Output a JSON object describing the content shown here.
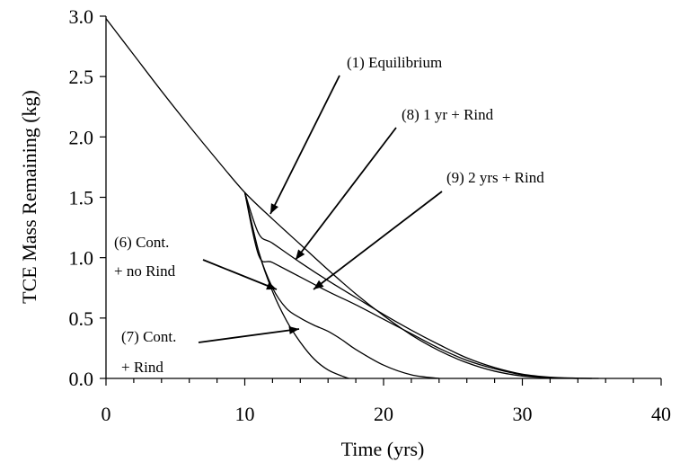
{
  "chart_data": {
    "type": "line",
    "title": "",
    "xlabel": "Time (yrs)",
    "ylabel": "TCE Mass Remaining (kg)",
    "xlim": [
      0,
      40
    ],
    "ylim": [
      0,
      3.0
    ],
    "x_ticks": [
      0,
      10,
      20,
      30,
      40
    ],
    "x_tick_labels": [
      "0",
      "10",
      "20",
      "30",
      "40"
    ],
    "y_ticks": [
      0,
      0.5,
      1.0,
      1.5,
      2.0,
      2.5,
      3.0
    ],
    "y_tick_labels": [
      "0.0",
      "0.5",
      "1.0",
      "1.5",
      "2.0",
      "2.5",
      "3.0"
    ],
    "grid": false,
    "legend": "none",
    "series": [
      {
        "x": [
          0,
          2,
          4,
          6,
          8,
          10,
          12,
          14,
          16,
          18,
          20,
          22,
          24,
          26,
          28,
          30,
          32,
          34,
          35.5
        ],
        "y": [
          2.98,
          2.68,
          2.38,
          2.09,
          1.81,
          1.54,
          1.32,
          1.11,
          0.9,
          0.7,
          0.52,
          0.36,
          0.23,
          0.13,
          0.06,
          0.02,
          0.005,
          0.001,
          0.0
        ]
      },
      {
        "x": [
          10,
          11,
          12,
          14,
          16,
          18,
          20,
          22,
          24,
          26,
          28,
          30,
          32,
          34,
          35
        ],
        "y": [
          1.54,
          1.2,
          1.12,
          0.96,
          0.81,
          0.67,
          0.53,
          0.4,
          0.28,
          0.17,
          0.09,
          0.035,
          0.01,
          0.002,
          0.0
        ]
      },
      {
        "x": [
          10,
          11,
          12,
          14,
          16,
          18,
          20,
          22,
          24,
          26,
          28,
          30,
          32,
          34
        ],
        "y": [
          1.54,
          1.02,
          0.96,
          0.84,
          0.72,
          0.61,
          0.49,
          0.37,
          0.25,
          0.15,
          0.08,
          0.03,
          0.008,
          0.0
        ]
      },
      {
        "x": [
          10,
          11,
          12,
          13,
          14,
          15,
          16,
          17,
          17.5
        ],
        "y": [
          1.54,
          1.05,
          0.72,
          0.48,
          0.3,
          0.16,
          0.07,
          0.02,
          0.0
        ]
      },
      {
        "x": [
          10,
          11,
          12,
          13,
          14,
          15,
          16,
          17,
          18,
          20,
          22,
          24
        ],
        "y": [
          1.54,
          1.05,
          0.75,
          0.58,
          0.5,
          0.44,
          0.39,
          0.32,
          0.24,
          0.11,
          0.03,
          0.0
        ]
      }
    ],
    "annotations": [
      {
        "lines": [
          "(1) Equilibrium"
        ]
      },
      {
        "lines": [
          "(8) 1 yr + Rind"
        ]
      },
      {
        "lines": [
          "(9) 2 yrs + Rind"
        ]
      },
      {
        "lines": [
          "(6) Cont.",
          "+ no Rind"
        ]
      },
      {
        "lines": [
          "(7) Cont.",
          "+ Rind"
        ]
      }
    ]
  }
}
